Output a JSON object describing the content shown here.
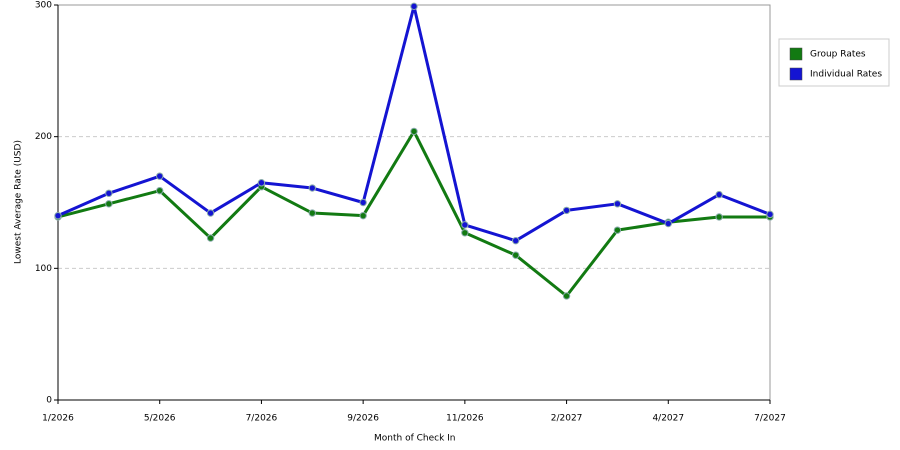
{
  "chart_data": {
    "type": "line",
    "x_label": "Month of Check In",
    "y_label": "Lowest Average Rate (USD)",
    "categories": [
      "1/2026",
      null,
      "5/2026",
      null,
      "7/2026",
      null,
      "9/2026",
      null,
      "11/2026",
      null,
      "2/2027",
      null,
      "4/2027",
      null,
      "7/2027"
    ],
    "series": [
      {
        "name": "Group Rates",
        "color": "#127a12",
        "values": [
          139,
          149,
          159,
          123,
          162,
          142,
          140,
          204,
          127,
          110,
          79,
          129,
          135,
          139,
          139
        ]
      },
      {
        "name": "Individual Rates",
        "color": "#1414d2",
        "values": [
          140,
          157,
          170,
          142,
          165,
          161,
          150,
          299,
          133,
          121,
          144,
          149,
          134,
          156,
          141
        ]
      }
    ],
    "ylim": [
      0,
      300
    ],
    "yticks": [
      0,
      100,
      200,
      300
    ],
    "grid": true,
    "legend": "top-right"
  }
}
